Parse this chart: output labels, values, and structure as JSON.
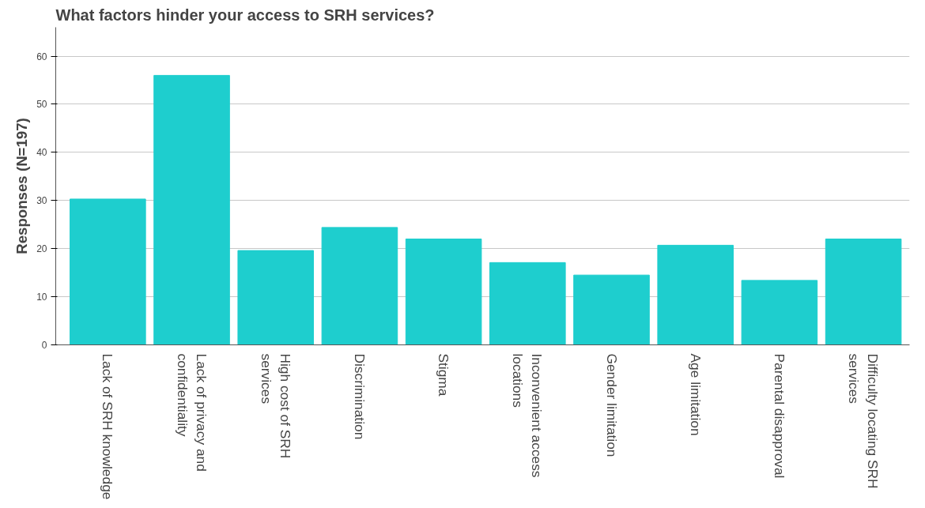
{
  "chart_data": {
    "type": "bar",
    "title": "What factors hinder your access to SRH services?",
    "ylabel": "Responses (N=197)",
    "categories": [
      "Lack of SRH knowledge",
      "Lack of privacy and confidentiality",
      "High cost of SRH services",
      "Discrimination",
      "Stigma",
      "Inconvenient access locations",
      "Gender limitation",
      "Age limitation",
      "Parental disapproval",
      "Difficulty locating SRH services"
    ],
    "values": [
      30.3,
      56.0,
      19.6,
      24.4,
      22.0,
      17.1,
      14.5,
      20.7,
      13.4,
      22.0
    ],
    "color": "#1ecece",
    "ylim": [
      0,
      66
    ],
    "yticks": [
      0,
      10,
      20,
      30,
      40,
      50,
      60
    ],
    "grid": "y"
  }
}
